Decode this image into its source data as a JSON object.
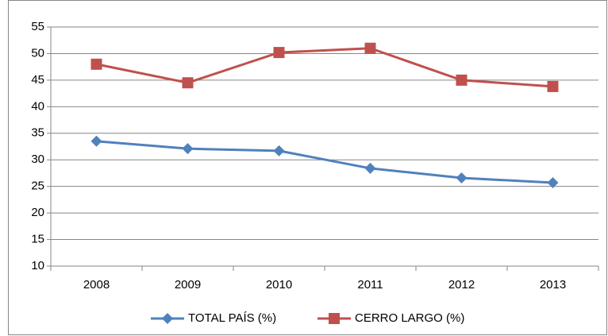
{
  "chart_data": {
    "type": "line",
    "categories": [
      "2008",
      "2009",
      "2010",
      "2011",
      "2012",
      "2013"
    ],
    "series": [
      {
        "name": "TOTAL PAÍS (%)",
        "color": "#4f81bd",
        "marker": "diamond",
        "values": [
          33.5,
          32.1,
          31.7,
          28.4,
          26.6,
          25.7
        ]
      },
      {
        "name": "CERRO LARGO (%)",
        "color": "#c0504d",
        "marker": "square",
        "values": [
          48.0,
          44.5,
          50.2,
          51.0,
          45.0,
          43.8
        ]
      }
    ],
    "ylim": [
      10,
      55
    ],
    "yticks": [
      10,
      15,
      20,
      25,
      30,
      35,
      40,
      45,
      50,
      55
    ],
    "grid": true,
    "legend": "bottom"
  }
}
